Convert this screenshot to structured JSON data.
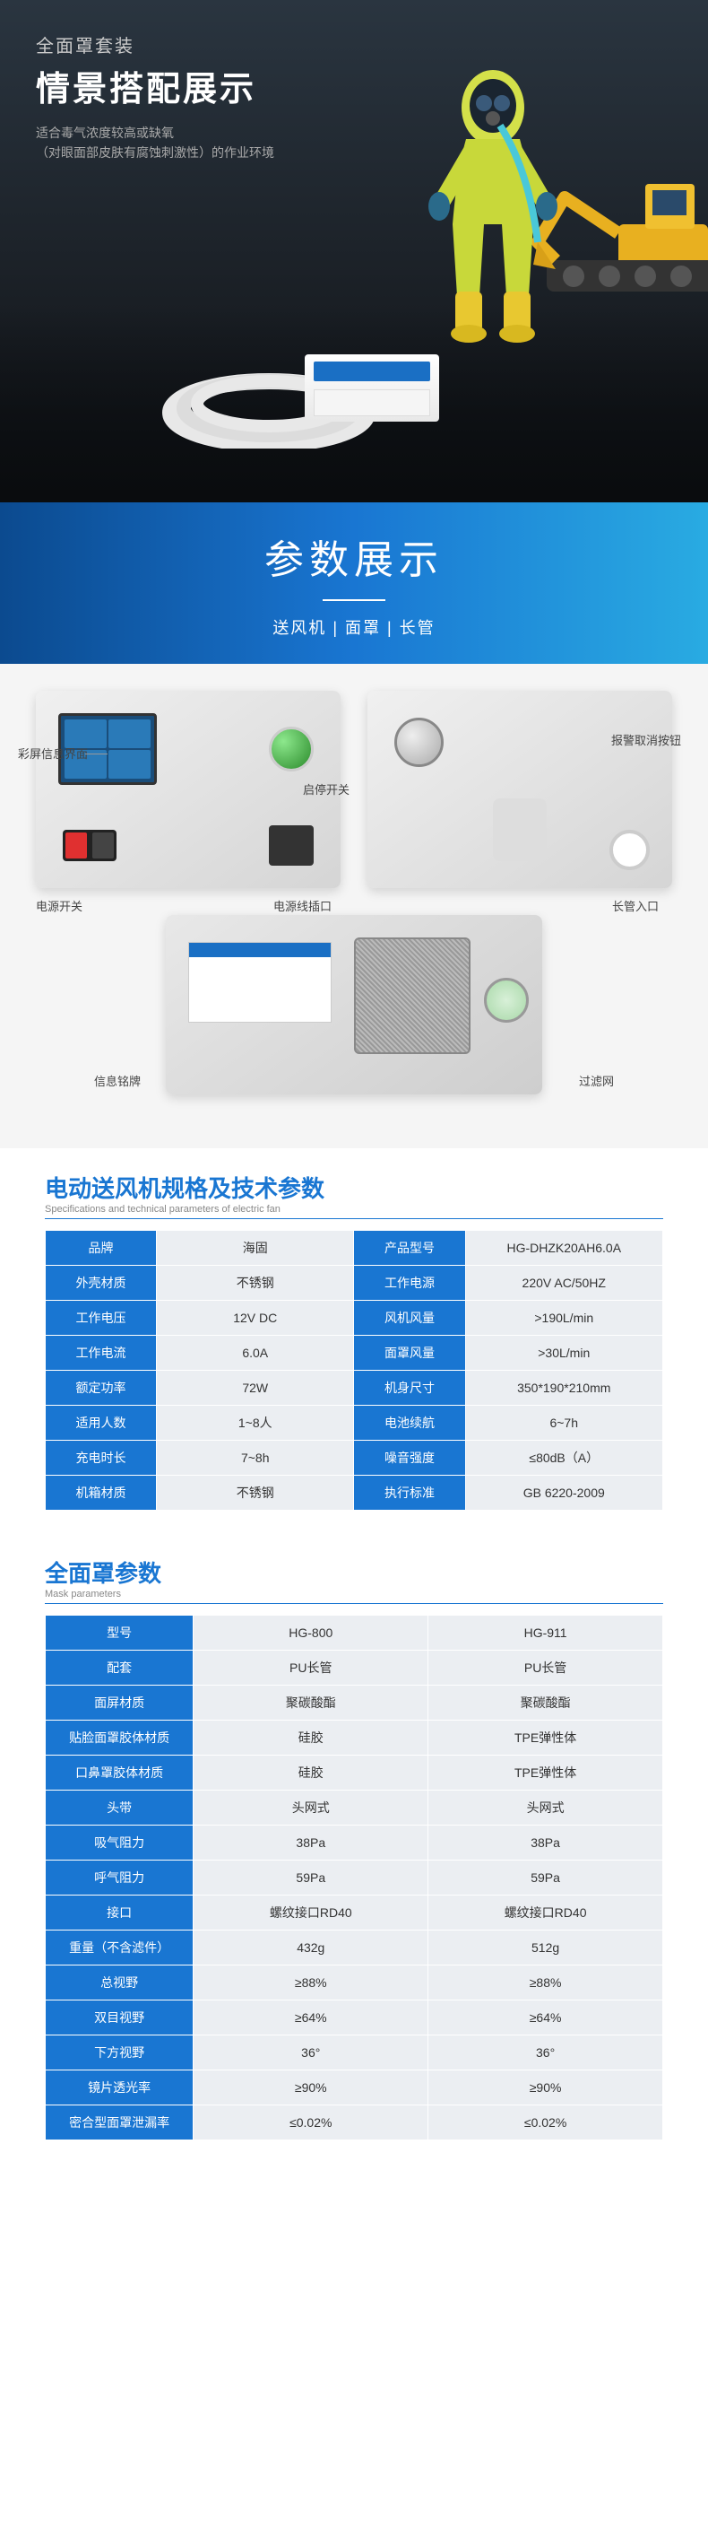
{
  "hero": {
    "subtitle": "全面罩套装",
    "title": "情景搭配展示",
    "desc1": "适合毒气浓度较高或缺氧",
    "desc2": "（对眼面部皮肤有腐蚀刺激性）的作业环境"
  },
  "banner": {
    "title": "参数展示",
    "sub": "送风机 | 面罩 | 长管"
  },
  "diagram": {
    "labels": {
      "screen": "彩屏信息界面",
      "startStop": "启停开关",
      "powerSwitch": "电源开关",
      "powerPort": "电源线插口",
      "alarmBtn": "报警取消按钮",
      "tubeInlet": "长管入口",
      "infoPlate": "信息铭牌",
      "filter": "过滤网"
    }
  },
  "specTitle": {
    "cn": "电动送风机规格及技术参数",
    "en": "Specifications and technical parameters of electric fan"
  },
  "specRows": [
    {
      "h1": "品牌",
      "v1": "海固",
      "h2": "产品型号",
      "v2": "HG-DHZK20AH6.0A"
    },
    {
      "h1": "外壳材质",
      "v1": "不锈钢",
      "h2": "工作电源",
      "v2": "220V AC/50HZ"
    },
    {
      "h1": "工作电压",
      "v1": "12V DC",
      "h2": "风机风量",
      "v2": ">190L/min"
    },
    {
      "h1": "工作电流",
      "v1": "6.0A",
      "h2": "面罩风量",
      "v2": ">30L/min"
    },
    {
      "h1": "额定功率",
      "v1": "72W",
      "h2": "机身尺寸",
      "v2": "350*190*210mm"
    },
    {
      "h1": "适用人数",
      "v1": "1~8人",
      "h2": "电池续航",
      "v2": "6~7h"
    },
    {
      "h1": "充电时长",
      "v1": "7~8h",
      "h2": "噪音强度",
      "v2": "≤80dB（A）"
    },
    {
      "h1": "机箱材质",
      "v1": "不锈钢",
      "h2": "执行标准",
      "v2": "GB 6220-2009"
    }
  ],
  "maskTitle": {
    "cn": "全面罩参数",
    "en": "Mask parameters"
  },
  "maskHeaders": [
    "型号",
    "HG-800",
    "HG-911"
  ],
  "maskRows": [
    {
      "h": "配套",
      "v1": "PU长管",
      "v2": "PU长管"
    },
    {
      "h": "面屏材质",
      "v1": "聚碳酸酯",
      "v2": "聚碳酸酯"
    },
    {
      "h": "贴脸面罩胶体材质",
      "v1": "硅胶",
      "v2": "TPE弹性体"
    },
    {
      "h": "口鼻罩胶体材质",
      "v1": "硅胶",
      "v2": "TPE弹性体"
    },
    {
      "h": "头带",
      "v1": "头网式",
      "v2": "头网式"
    },
    {
      "h": "吸气阻力",
      "v1": "38Pa",
      "v2": "38Pa"
    },
    {
      "h": "呼气阻力",
      "v1": "59Pa",
      "v2": "59Pa"
    },
    {
      "h": "接口",
      "v1": "螺纹接口RD40",
      "v2": "螺纹接口RD40"
    },
    {
      "h": "重量（不含滤件）",
      "v1": "432g",
      "v2": "512g"
    },
    {
      "h": "总视野",
      "v1": "≥88%",
      "v2": "≥88%"
    },
    {
      "h": "双目视野",
      "v1": "≥64%",
      "v2": "≥64%"
    },
    {
      "h": "下方视野",
      "v1": "36°",
      "v2": "36°"
    },
    {
      "h": "镜片透光率",
      "v1": "≥90%",
      "v2": "≥90%"
    },
    {
      "h": "密合型面罩泄漏率",
      "v1": "≤0.02%",
      "v2": "≤0.02%"
    }
  ]
}
